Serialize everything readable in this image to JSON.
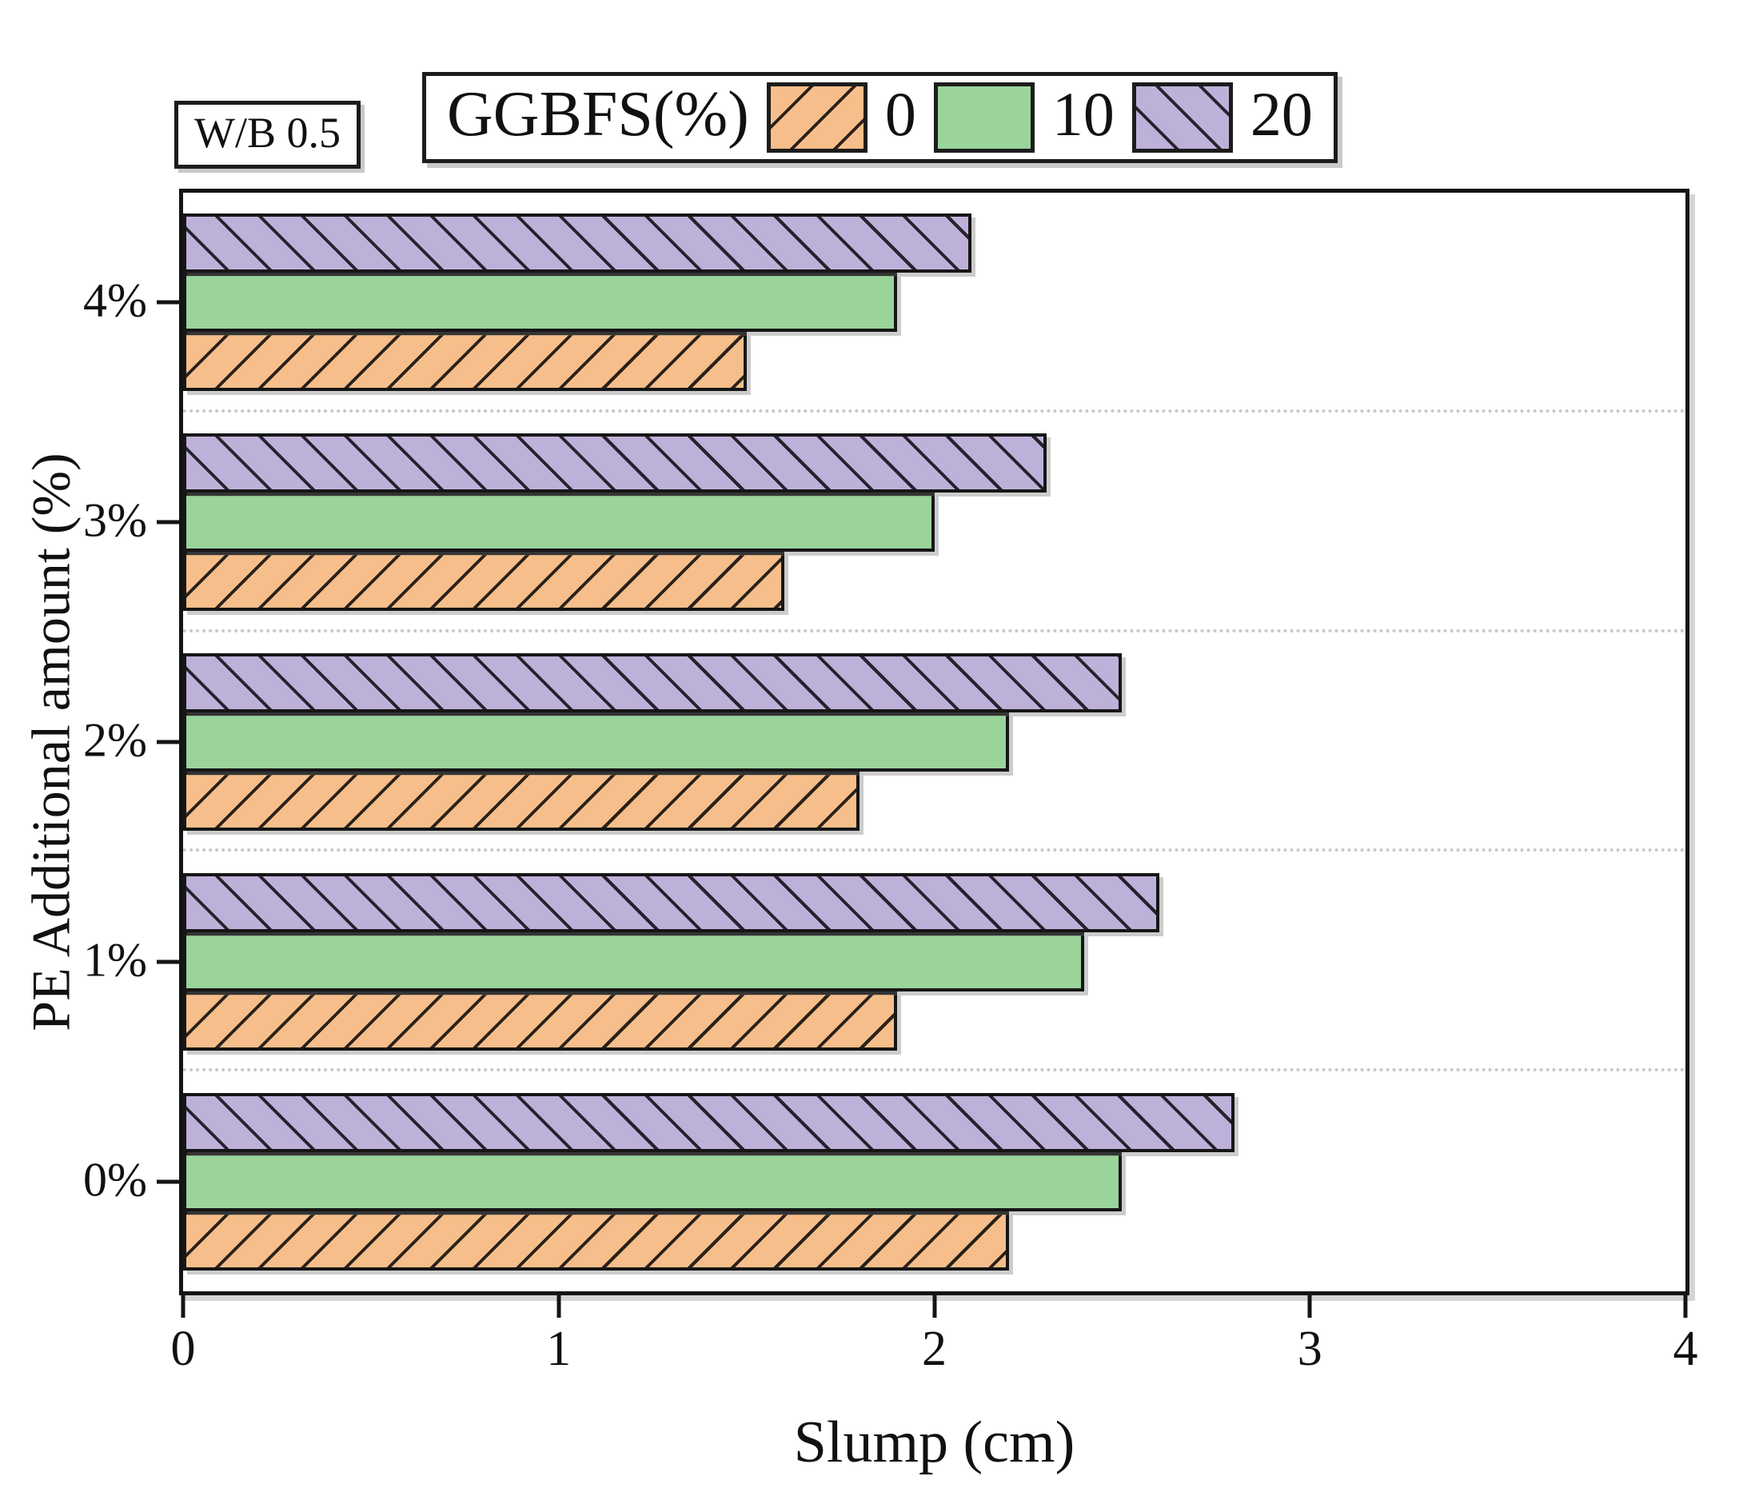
{
  "chart_data": {
    "type": "bar",
    "orientation": "horizontal",
    "title": "",
    "xlabel": "Slump (cm)",
    "ylabel": "PE Additional amount (%)",
    "xlim": [
      0,
      4
    ],
    "xticks": [
      "0",
      "1",
      "2",
      "3",
      "4"
    ],
    "categories_bottom_to_top": [
      "0%",
      "1%",
      "2%",
      "3%",
      "4%"
    ],
    "grid": "dotted horizontal separators between category groups",
    "legend_position": "top",
    "legend_title": "GGBFS(%)",
    "annotation": "W/B 0.5",
    "series": [
      {
        "name": "0",
        "color": "#f6be8a",
        "hatch": "/",
        "values": [
          2.2,
          1.9,
          1.8,
          1.6,
          1.5
        ]
      },
      {
        "name": "10",
        "color": "#9ad49b",
        "hatch": "none",
        "values": [
          2.5,
          2.4,
          2.2,
          2.0,
          1.9
        ]
      },
      {
        "name": "20",
        "color": "#beb1d9",
        "hatch": "\\",
        "values": [
          2.8,
          2.6,
          2.5,
          2.3,
          2.1
        ]
      }
    ],
    "bar_order_in_group_bottom_to_top": [
      "0",
      "10",
      "20"
    ],
    "axis_color": "#141414",
    "grid_color": "#c8c8c8"
  }
}
